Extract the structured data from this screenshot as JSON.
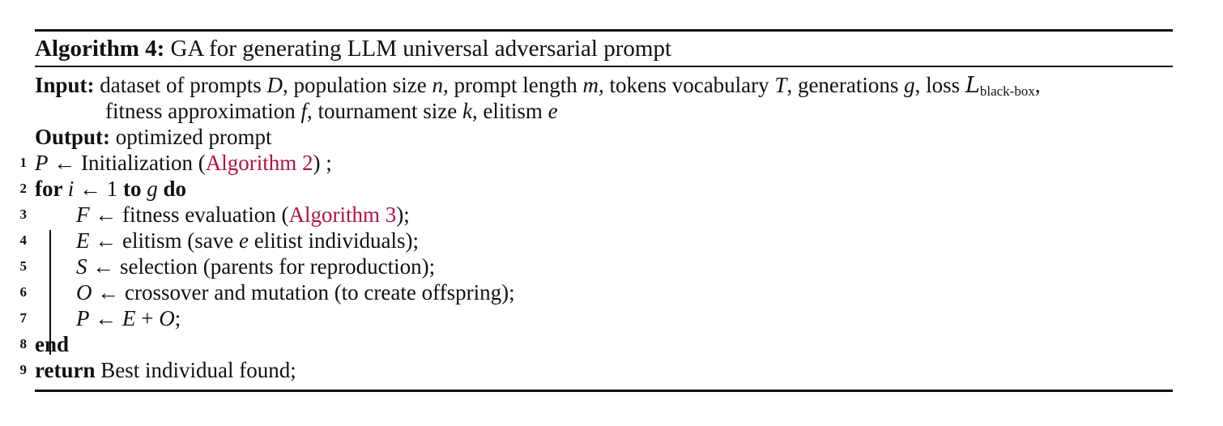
{
  "caption": {
    "label": "Algorithm 4:",
    "title": "GA for generating LLM universal adversarial prompt"
  },
  "io": {
    "input_label": "Input:",
    "input_line1": [
      {
        "t": "text",
        "v": "dataset of prompts "
      },
      {
        "t": "math",
        "v": "D"
      },
      {
        "t": "text",
        "v": ", population size "
      },
      {
        "t": "math",
        "v": "n"
      },
      {
        "t": "text",
        "v": ", prompt length "
      },
      {
        "t": "math",
        "v": "m"
      },
      {
        "t": "text",
        "v": ", tokens vocabulary "
      },
      {
        "t": "math",
        "v": "T"
      },
      {
        "t": "text",
        "v": ", generations "
      },
      {
        "t": "math",
        "v": "g"
      },
      {
        "t": "text",
        "v": ", loss "
      },
      {
        "t": "cal",
        "v": "L"
      },
      {
        "t": "sub",
        "v": "black-box"
      },
      {
        "t": "text",
        "v": ","
      }
    ],
    "input_line2": [
      {
        "t": "text",
        "v": "fitness approximation "
      },
      {
        "t": "math",
        "v": "f"
      },
      {
        "t": "text",
        "v": ", tournament size "
      },
      {
        "t": "math",
        "v": "k"
      },
      {
        "t": "text",
        "v": ", elitism "
      },
      {
        "t": "math",
        "v": "e"
      }
    ],
    "output_label": "Output:",
    "output_text": "optimized prompt"
  },
  "steps": [
    {
      "no": "1",
      "indent": 0,
      "parts": [
        {
          "t": "math",
          "v": "P"
        },
        {
          "t": "text",
          "v": " ← Initialization ("
        },
        {
          "t": "ref",
          "v": "Algorithm 2"
        },
        {
          "t": "text",
          "v": ") ;"
        }
      ]
    },
    {
      "no": "2",
      "indent": 0,
      "parts": [
        {
          "t": "kw",
          "v": "for "
        },
        {
          "t": "math",
          "v": "i"
        },
        {
          "t": "text",
          "v": " ← 1 "
        },
        {
          "t": "kw",
          "v": "to "
        },
        {
          "t": "math",
          "v": "g"
        },
        {
          "t": "kw",
          "v": " do"
        }
      ]
    },
    {
      "no": "3",
      "indent": 1,
      "parts": [
        {
          "t": "math",
          "v": "F"
        },
        {
          "t": "text",
          "v": " ← fitness evaluation ("
        },
        {
          "t": "ref",
          "v": "Algorithm 3"
        },
        {
          "t": "text",
          "v": ");"
        }
      ]
    },
    {
      "no": "4",
      "indent": 1,
      "parts": [
        {
          "t": "math",
          "v": "E"
        },
        {
          "t": "text",
          "v": " ← elitism (save "
        },
        {
          "t": "math",
          "v": "e"
        },
        {
          "t": "text",
          "v": " elitist individuals);"
        }
      ]
    },
    {
      "no": "5",
      "indent": 1,
      "parts": [
        {
          "t": "math",
          "v": "S"
        },
        {
          "t": "text",
          "v": " ← selection (parents for reproduction);"
        }
      ]
    },
    {
      "no": "6",
      "indent": 1,
      "parts": [
        {
          "t": "math",
          "v": "O"
        },
        {
          "t": "text",
          "v": " ← crossover and mutation (to create offspring);"
        }
      ]
    },
    {
      "no": "7",
      "indent": 1,
      "parts": [
        {
          "t": "math",
          "v": "P"
        },
        {
          "t": "text",
          "v": " ← "
        },
        {
          "t": "math",
          "v": "E"
        },
        {
          "t": "text",
          "v": " + "
        },
        {
          "t": "math",
          "v": "O"
        },
        {
          "t": "text",
          "v": ";"
        }
      ]
    },
    {
      "no": "8",
      "indent": 0,
      "parts": [
        {
          "t": "kw",
          "v": "end"
        }
      ]
    },
    {
      "no": "9",
      "indent": 0,
      "parts": [
        {
          "t": "kw",
          "v": "return "
        },
        {
          "t": "text",
          "v": "Best individual found;"
        }
      ]
    }
  ]
}
